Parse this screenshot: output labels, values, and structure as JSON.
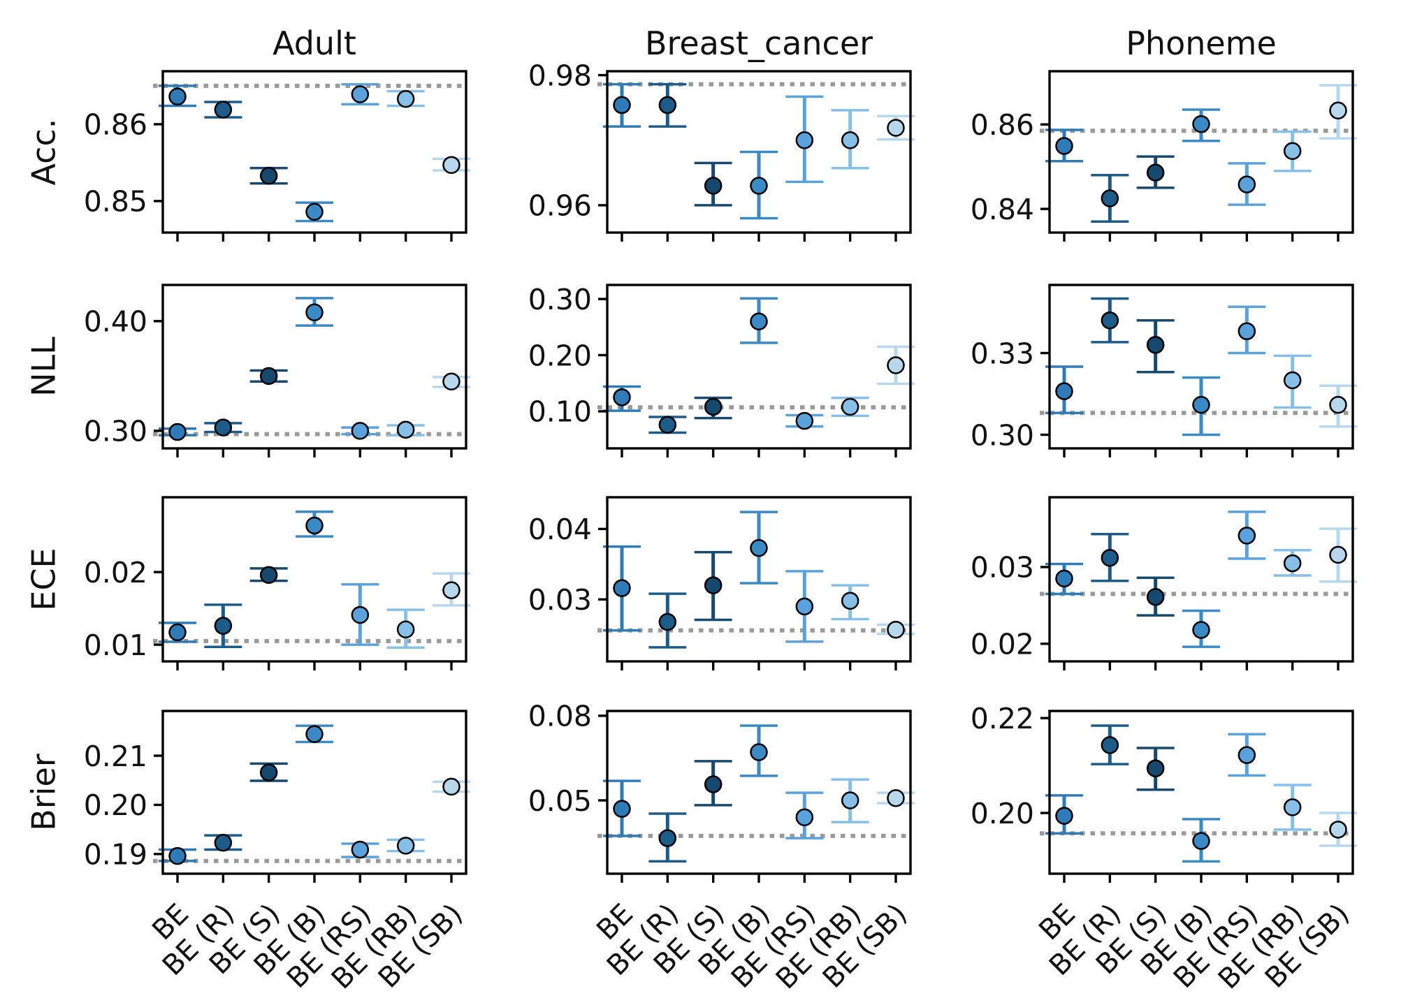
{
  "figure": {
    "column_titles": [
      "Adult",
      "Breast_cancer",
      "Phoneme"
    ],
    "row_labels": [
      "Acc.",
      "NLL",
      "ECE",
      "Brier"
    ]
  },
  "chart_data": {
    "type": "scatter",
    "variant": "errorbar-grid",
    "legend_position": "none",
    "grid_lines": "off",
    "categories": [
      "BE",
      "BE (R)",
      "BE (S)",
      "BE (B)",
      "BE (RS)",
      "BE (RB)",
      "BE (SB)"
    ],
    "series_colors": [
      "#2e7bb8",
      "#1d5b89",
      "#17486e",
      "#3a8ac6",
      "#5aa2dc",
      "#86bfe8",
      "#b7d8ec"
    ],
    "marker_edge_color": "#000000",
    "baseline_color": "#9a9a9a",
    "baseline_style": "dotted",
    "grid": [
      {
        "dataset": "Adult",
        "metric": "Acc.",
        "ylim": [
          0.8459,
          0.8669
        ],
        "baseline": 0.865,
        "yticks": [
          {
            "label": "0.86",
            "value": 0.86
          },
          {
            "label": "0.85",
            "value": 0.85
          }
        ],
        "points": [
          {
            "v": 0.8636,
            "lo": 0.8624,
            "hi": 0.865
          },
          {
            "v": 0.8619,
            "lo": 0.8609,
            "hi": 0.8629
          },
          {
            "v": 0.8533,
            "lo": 0.8523,
            "hi": 0.8543
          },
          {
            "v": 0.8486,
            "lo": 0.8474,
            "hi": 0.8498
          },
          {
            "v": 0.8639,
            "lo": 0.8626,
            "hi": 0.8652
          },
          {
            "v": 0.8633,
            "lo": 0.8624,
            "hi": 0.8643
          },
          {
            "v": 0.8547,
            "lo": 0.854,
            "hi": 0.8555
          }
        ]
      },
      {
        "dataset": "Breast_cancer",
        "metric": "Acc.",
        "ylim": [
          0.9558,
          0.9806
        ],
        "baseline": 0.9786,
        "yticks": [
          {
            "label": "0.98",
            "value": 0.98
          },
          {
            "label": "0.96",
            "value": 0.96
          }
        ],
        "points": [
          {
            "v": 0.9754,
            "lo": 0.9721,
            "hi": 0.9786
          },
          {
            "v": 0.9754,
            "lo": 0.9721,
            "hi": 0.9786
          },
          {
            "v": 0.963,
            "lo": 0.96,
            "hi": 0.9665
          },
          {
            "v": 0.963,
            "lo": 0.958,
            "hi": 0.9682
          },
          {
            "v": 0.97,
            "lo": 0.9636,
            "hi": 0.9767
          },
          {
            "v": 0.97,
            "lo": 0.9657,
            "hi": 0.9746
          },
          {
            "v": 0.9719,
            "lo": 0.9701,
            "hi": 0.9737
          }
        ]
      },
      {
        "dataset": "Phoneme",
        "metric": "Acc.",
        "ylim": [
          0.8344,
          0.8726
        ],
        "baseline": 0.8585,
        "yticks": [
          {
            "label": "0.86",
            "value": 0.86
          },
          {
            "label": "0.84",
            "value": 0.84
          }
        ],
        "points": [
          {
            "v": 0.8549,
            "lo": 0.8513,
            "hi": 0.8587
          },
          {
            "v": 0.8425,
            "lo": 0.837,
            "hi": 0.848
          },
          {
            "v": 0.8486,
            "lo": 0.845,
            "hi": 0.8524
          },
          {
            "v": 0.8601,
            "lo": 0.8561,
            "hi": 0.8635
          },
          {
            "v": 0.8458,
            "lo": 0.841,
            "hi": 0.8508
          },
          {
            "v": 0.8537,
            "lo": 0.849,
            "hi": 0.8583
          },
          {
            "v": 0.8633,
            "lo": 0.8567,
            "hi": 0.8693
          }
        ]
      },
      {
        "dataset": "Adult",
        "metric": "NLL",
        "ylim": [
          0.284,
          0.433
        ],
        "baseline": 0.297,
        "yticks": [
          {
            "label": "0.40",
            "value": 0.4
          },
          {
            "label": "0.30",
            "value": 0.3
          }
        ],
        "points": [
          {
            "v": 0.299,
            "lo": 0.296,
            "hi": 0.302
          },
          {
            "v": 0.303,
            "lo": 0.299,
            "hi": 0.307
          },
          {
            "v": 0.35,
            "lo": 0.345,
            "hi": 0.355
          },
          {
            "v": 0.408,
            "lo": 0.396,
            "hi": 0.421
          },
          {
            "v": 0.3,
            "lo": 0.297,
            "hi": 0.303
          },
          {
            "v": 0.301,
            "lo": 0.296,
            "hi": 0.305
          },
          {
            "v": 0.345,
            "lo": 0.34,
            "hi": 0.349
          }
        ]
      },
      {
        "dataset": "Breast_cancer",
        "metric": "NLL",
        "ylim": [
          0.034,
          0.325
        ],
        "baseline": 0.107,
        "yticks": [
          {
            "label": "0.30",
            "value": 0.3
          },
          {
            "label": "0.20",
            "value": 0.2
          },
          {
            "label": "0.10",
            "value": 0.1
          }
        ],
        "points": [
          {
            "v": 0.125,
            "lo": 0.101,
            "hi": 0.144
          },
          {
            "v": 0.076,
            "lo": 0.062,
            "hi": 0.09
          },
          {
            "v": 0.108,
            "lo": 0.088,
            "hi": 0.124
          },
          {
            "v": 0.26,
            "lo": 0.222,
            "hi": 0.301
          },
          {
            "v": 0.083,
            "lo": 0.073,
            "hi": 0.093
          },
          {
            "v": 0.108,
            "lo": 0.092,
            "hi": 0.124
          },
          {
            "v": 0.182,
            "lo": 0.149,
            "hi": 0.215
          }
        ]
      },
      {
        "dataset": "Phoneme",
        "metric": "NLL",
        "ylim": [
          0.295,
          0.355
        ],
        "baseline": 0.308,
        "yticks": [
          {
            "label": "0.33",
            "value": 0.33
          },
          {
            "label": "0.30",
            "value": 0.3
          }
        ],
        "points": [
          {
            "v": 0.316,
            "lo": 0.308,
            "hi": 0.325
          },
          {
            "v": 0.342,
            "lo": 0.334,
            "hi": 0.35
          },
          {
            "v": 0.333,
            "lo": 0.323,
            "hi": 0.342
          },
          {
            "v": 0.311,
            "lo": 0.3,
            "hi": 0.321
          },
          {
            "v": 0.338,
            "lo": 0.33,
            "hi": 0.347
          },
          {
            "v": 0.32,
            "lo": 0.31,
            "hi": 0.329
          },
          {
            "v": 0.311,
            "lo": 0.303,
            "hi": 0.318
          }
        ]
      },
      {
        "dataset": "Adult",
        "metric": "ECE",
        "ylim": [
          0.0077,
          0.0303
        ],
        "baseline": 0.0105,
        "yticks": [
          {
            "label": "0.02",
            "value": 0.02
          },
          {
            "label": "0.01",
            "value": 0.01
          }
        ],
        "points": [
          {
            "v": 0.0117,
            "lo": 0.0104,
            "hi": 0.013
          },
          {
            "v": 0.0126,
            "lo": 0.0097,
            "hi": 0.0155
          },
          {
            "v": 0.0196,
            "lo": 0.0188,
            "hi": 0.0205
          },
          {
            "v": 0.0264,
            "lo": 0.0249,
            "hi": 0.0283
          },
          {
            "v": 0.0141,
            "lo": 0.01,
            "hi": 0.0183
          },
          {
            "v": 0.0121,
            "lo": 0.0096,
            "hi": 0.0148
          },
          {
            "v": 0.0175,
            "lo": 0.0154,
            "hi": 0.0198
          }
        ]
      },
      {
        "dataset": "Breast_cancer",
        "metric": "ECE",
        "ylim": [
          0.0212,
          0.0445
        ],
        "baseline": 0.0256,
        "yticks": [
          {
            "label": "0.04",
            "value": 0.04
          },
          {
            "label": "0.03",
            "value": 0.03
          }
        ],
        "points": [
          {
            "v": 0.0316,
            "lo": 0.0256,
            "hi": 0.0375
          },
          {
            "v": 0.0268,
            "lo": 0.0232,
            "hi": 0.0308
          },
          {
            "v": 0.032,
            "lo": 0.0271,
            "hi": 0.0367
          },
          {
            "v": 0.0373,
            "lo": 0.0323,
            "hi": 0.0424
          },
          {
            "v": 0.029,
            "lo": 0.024,
            "hi": 0.034
          },
          {
            "v": 0.0298,
            "lo": 0.0272,
            "hi": 0.032
          },
          {
            "v": 0.0257,
            "lo": 0.0251,
            "hi": 0.0264
          }
        ]
      },
      {
        "dataset": "Phoneme",
        "metric": "ECE",
        "ylim": [
          0.0177,
          0.0391
        ],
        "baseline": 0.0265,
        "yticks": [
          {
            "label": "0.03",
            "value": 0.03
          },
          {
            "label": "0.02",
            "value": 0.02
          }
        ],
        "points": [
          {
            "v": 0.0285,
            "lo": 0.0265,
            "hi": 0.0304
          },
          {
            "v": 0.0312,
            "lo": 0.0282,
            "hi": 0.0343
          },
          {
            "v": 0.0261,
            "lo": 0.0237,
            "hi": 0.0286
          },
          {
            "v": 0.0218,
            "lo": 0.0196,
            "hi": 0.0243
          },
          {
            "v": 0.0341,
            "lo": 0.0311,
            "hi": 0.0372
          },
          {
            "v": 0.0305,
            "lo": 0.0289,
            "hi": 0.0322
          },
          {
            "v": 0.0316,
            "lo": 0.0281,
            "hi": 0.035
          }
        ]
      },
      {
        "dataset": "Adult",
        "metric": "Brier",
        "ylim": [
          0.186,
          0.2191
        ],
        "baseline": 0.1886,
        "yticks": [
          {
            "label": "0.21",
            "value": 0.21
          },
          {
            "label": "0.20",
            "value": 0.2
          },
          {
            "label": "0.19",
            "value": 0.19
          }
        ],
        "points": [
          {
            "v": 0.1896,
            "lo": 0.1886,
            "hi": 0.1909
          },
          {
            "v": 0.1923,
            "lo": 0.1909,
            "hi": 0.1938
          },
          {
            "v": 0.2066,
            "lo": 0.2049,
            "hi": 0.2084
          },
          {
            "v": 0.2144,
            "lo": 0.2128,
            "hi": 0.2161
          },
          {
            "v": 0.1909,
            "lo": 0.1894,
            "hi": 0.1921
          },
          {
            "v": 0.1917,
            "lo": 0.1906,
            "hi": 0.1929
          },
          {
            "v": 0.2037,
            "lo": 0.2027,
            "hi": 0.2047
          }
        ]
      },
      {
        "dataset": "Breast_cancer",
        "metric": "Brier",
        "ylim": [
          0.024,
          0.0817
        ],
        "baseline": 0.0374,
        "yticks": [
          {
            "label": "0.08",
            "value": 0.08
          },
          {
            "label": "0.05",
            "value": 0.05
          }
        ],
        "points": [
          {
            "v": 0.047,
            "lo": 0.0374,
            "hi": 0.0569
          },
          {
            "v": 0.0366,
            "lo": 0.0284,
            "hi": 0.0453
          },
          {
            "v": 0.0557,
            "lo": 0.0483,
            "hi": 0.0639
          },
          {
            "v": 0.0671,
            "lo": 0.0587,
            "hi": 0.0765
          },
          {
            "v": 0.044,
            "lo": 0.0366,
            "hi": 0.0527
          },
          {
            "v": 0.05,
            "lo": 0.0423,
            "hi": 0.0574
          },
          {
            "v": 0.0508,
            "lo": 0.049,
            "hi": 0.0527
          }
        ]
      },
      {
        "dataset": "Phoneme",
        "metric": "Brier",
        "ylim": [
          0.1872,
          0.2215
        ],
        "baseline": 0.1957,
        "yticks": [
          {
            "label": "0.22",
            "value": 0.22
          },
          {
            "label": "0.20",
            "value": 0.2
          }
        ],
        "points": [
          {
            "v": 0.1994,
            "lo": 0.1957,
            "hi": 0.2037
          },
          {
            "v": 0.2143,
            "lo": 0.2103,
            "hi": 0.2184
          },
          {
            "v": 0.2094,
            "lo": 0.2049,
            "hi": 0.2137
          },
          {
            "v": 0.1941,
            "lo": 0.1898,
            "hi": 0.1987
          },
          {
            "v": 0.2122,
            "lo": 0.2079,
            "hi": 0.2166
          },
          {
            "v": 0.2012,
            "lo": 0.1965,
            "hi": 0.2059
          },
          {
            "v": 0.1965,
            "lo": 0.1931,
            "hi": 0.2
          }
        ]
      }
    ]
  }
}
